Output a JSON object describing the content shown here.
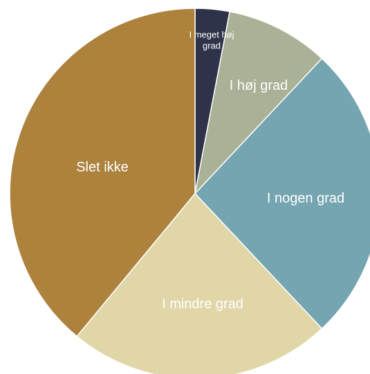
{
  "chart_data": {
    "type": "pie",
    "categories": [
      "I meget høj grad",
      "I høj grad",
      "I nogen grad",
      "I mindre grad",
      "Slet ikke"
    ],
    "values": [
      3,
      9,
      26,
      23,
      39
    ],
    "colors": [
      "#2e3349",
      "#a9b196",
      "#74a5b0",
      "#e1d6a8",
      "#ac823d"
    ]
  }
}
